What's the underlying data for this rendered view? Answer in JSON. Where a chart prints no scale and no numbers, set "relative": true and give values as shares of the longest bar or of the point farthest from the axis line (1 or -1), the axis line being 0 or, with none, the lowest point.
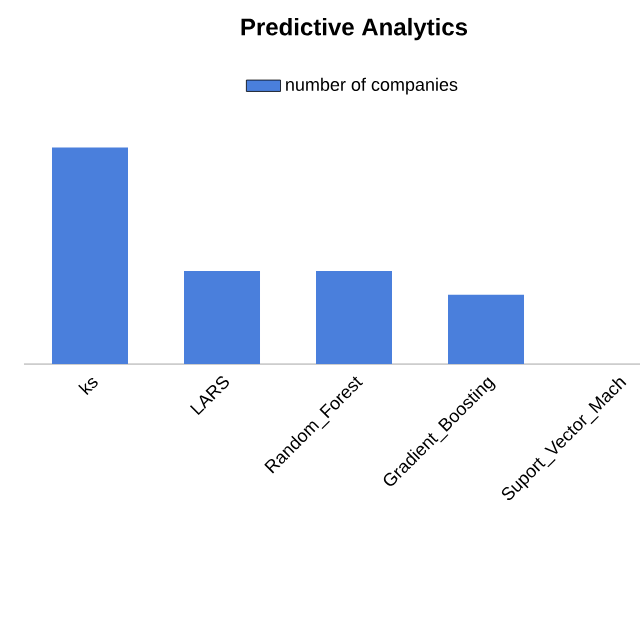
{
  "chart_data": {
    "type": "bar",
    "title": "Predictive Analytics",
    "relative": true,
    "categories": [
      "ks",
      "LARS",
      "Random_Forest",
      "Gradient_Boosting",
      "Suport_Vector_Mach"
    ],
    "series": [
      {
        "name": "number of companies",
        "color": "#4a7fdc",
        "values": [
          1,
          0.43,
          0.43,
          0.32,
          null
        ]
      }
    ],
    "legend": "top"
  }
}
